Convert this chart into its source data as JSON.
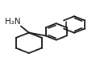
{
  "bg_color": "#ffffff",
  "line_color": "#1a1a1a",
  "line_width": 1.3,
  "h2n_text": "H₂N",
  "font_size": 7.5
}
